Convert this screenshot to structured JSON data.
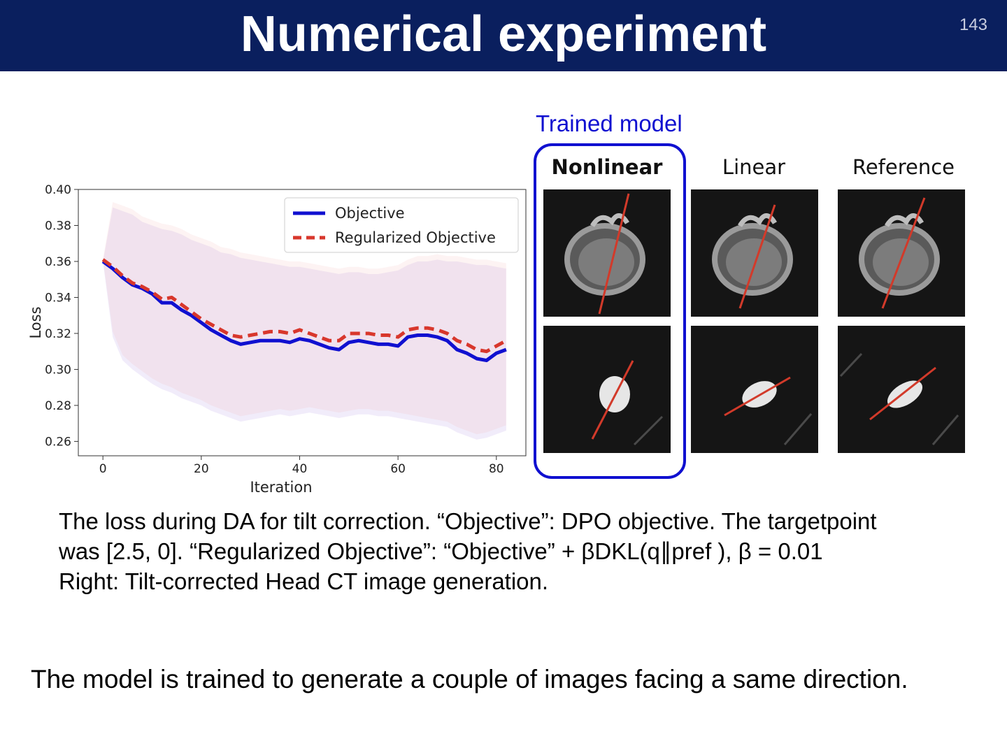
{
  "slide": {
    "title": "Numerical experiment",
    "page_number": "143"
  },
  "figure": {
    "trained_label": "Trained model",
    "columns": [
      "Nonlinear",
      "Linear",
      "Reference"
    ],
    "colors": {
      "box": "#1010d0",
      "tilt_line": "#d23a2a",
      "header": "#0a1f5e"
    }
  },
  "caption": {
    "line1": "The loss during DA for tilt correction. “Objective”: DPO objective. The targetpoint",
    "line2": "was [2.5, 0]. “Regularized Objective”: “Objective” + βDKL(q∥pref ), β = 0.01",
    "line3": "Right: Tilt-corrected Head CT image generation."
  },
  "conclusion": "The model is trained to generate a couple of images facing a same direction.",
  "chart_data": {
    "type": "line",
    "xlabel": "Iteration",
    "ylabel": "Loss",
    "xlim": [
      -5,
      86
    ],
    "ylim": [
      0.252,
      0.4
    ],
    "xticks": [
      0,
      20,
      40,
      60,
      80
    ],
    "yticks": [
      0.26,
      0.28,
      0.3,
      0.32,
      0.34,
      0.36,
      0.38,
      0.4
    ],
    "ytick_labels": [
      "0.26",
      "0.28",
      "0.30",
      "0.32",
      "0.34",
      "0.36",
      "0.38",
      "0.40"
    ],
    "grid": false,
    "legend": "top-right",
    "series": [
      {
        "name": "Objective",
        "color": "#1010d0",
        "style": "solid",
        "x": [
          0,
          2,
          4,
          6,
          8,
          10,
          12,
          14,
          16,
          18,
          20,
          22,
          24,
          26,
          28,
          30,
          32,
          34,
          36,
          38,
          40,
          42,
          44,
          46,
          48,
          50,
          52,
          54,
          56,
          58,
          60,
          62,
          64,
          66,
          68,
          70,
          72,
          74,
          76,
          78,
          80,
          82
        ],
        "y": [
          0.36,
          0.356,
          0.351,
          0.347,
          0.345,
          0.342,
          0.337,
          0.337,
          0.333,
          0.33,
          0.326,
          0.322,
          0.319,
          0.316,
          0.314,
          0.315,
          0.316,
          0.316,
          0.316,
          0.315,
          0.317,
          0.316,
          0.314,
          0.312,
          0.311,
          0.315,
          0.316,
          0.315,
          0.314,
          0.314,
          0.313,
          0.318,
          0.319,
          0.319,
          0.318,
          0.316,
          0.311,
          0.309,
          0.306,
          0.305,
          0.309,
          0.311
        ],
        "band_upper": [
          0.36,
          0.39,
          0.388,
          0.386,
          0.382,
          0.38,
          0.378,
          0.377,
          0.375,
          0.372,
          0.37,
          0.368,
          0.365,
          0.364,
          0.362,
          0.361,
          0.36,
          0.359,
          0.358,
          0.357,
          0.357,
          0.356,
          0.355,
          0.354,
          0.353,
          0.354,
          0.354,
          0.353,
          0.353,
          0.354,
          0.355,
          0.358,
          0.36,
          0.36,
          0.361,
          0.36,
          0.36,
          0.359,
          0.358,
          0.358,
          0.357,
          0.356
        ],
        "band_lower": [
          0.36,
          0.318,
          0.305,
          0.3,
          0.296,
          0.292,
          0.289,
          0.287,
          0.284,
          0.282,
          0.28,
          0.277,
          0.275,
          0.273,
          0.271,
          0.272,
          0.273,
          0.274,
          0.275,
          0.274,
          0.275,
          0.276,
          0.275,
          0.274,
          0.273,
          0.274,
          0.275,
          0.275,
          0.274,
          0.274,
          0.273,
          0.272,
          0.271,
          0.27,
          0.269,
          0.268,
          0.265,
          0.263,
          0.261,
          0.262,
          0.264,
          0.266
        ]
      },
      {
        "name": "Regularized Objective",
        "color": "#d8372c",
        "style": "dashed",
        "x": [
          0,
          2,
          4,
          6,
          8,
          10,
          12,
          14,
          16,
          18,
          20,
          22,
          24,
          26,
          28,
          30,
          32,
          34,
          36,
          38,
          40,
          42,
          44,
          46,
          48,
          50,
          52,
          54,
          56,
          58,
          60,
          62,
          64,
          66,
          68,
          70,
          72,
          74,
          76,
          78,
          80,
          82
        ],
        "y": [
          0.361,
          0.357,
          0.352,
          0.348,
          0.346,
          0.343,
          0.339,
          0.34,
          0.336,
          0.332,
          0.328,
          0.325,
          0.322,
          0.319,
          0.318,
          0.319,
          0.32,
          0.321,
          0.321,
          0.32,
          0.322,
          0.32,
          0.318,
          0.316,
          0.316,
          0.32,
          0.32,
          0.32,
          0.319,
          0.319,
          0.318,
          0.322,
          0.323,
          0.323,
          0.322,
          0.32,
          0.316,
          0.314,
          0.311,
          0.31,
          0.313,
          0.316
        ],
        "band_upper": [
          0.361,
          0.393,
          0.391,
          0.389,
          0.385,
          0.383,
          0.381,
          0.38,
          0.378,
          0.375,
          0.373,
          0.371,
          0.368,
          0.367,
          0.365,
          0.364,
          0.363,
          0.362,
          0.361,
          0.36,
          0.36,
          0.359,
          0.358,
          0.357,
          0.356,
          0.357,
          0.357,
          0.356,
          0.356,
          0.357,
          0.358,
          0.361,
          0.363,
          0.363,
          0.364,
          0.363,
          0.363,
          0.362,
          0.361,
          0.361,
          0.36,
          0.359
        ],
        "band_lower": [
          0.361,
          0.321,
          0.308,
          0.303,
          0.299,
          0.295,
          0.292,
          0.29,
          0.287,
          0.285,
          0.283,
          0.28,
          0.278,
          0.276,
          0.274,
          0.275,
          0.276,
          0.277,
          0.278,
          0.277,
          0.278,
          0.279,
          0.278,
          0.277,
          0.276,
          0.277,
          0.278,
          0.278,
          0.277,
          0.277,
          0.276,
          0.275,
          0.274,
          0.273,
          0.272,
          0.271,
          0.268,
          0.266,
          0.264,
          0.265,
          0.267,
          0.269
        ]
      }
    ]
  }
}
